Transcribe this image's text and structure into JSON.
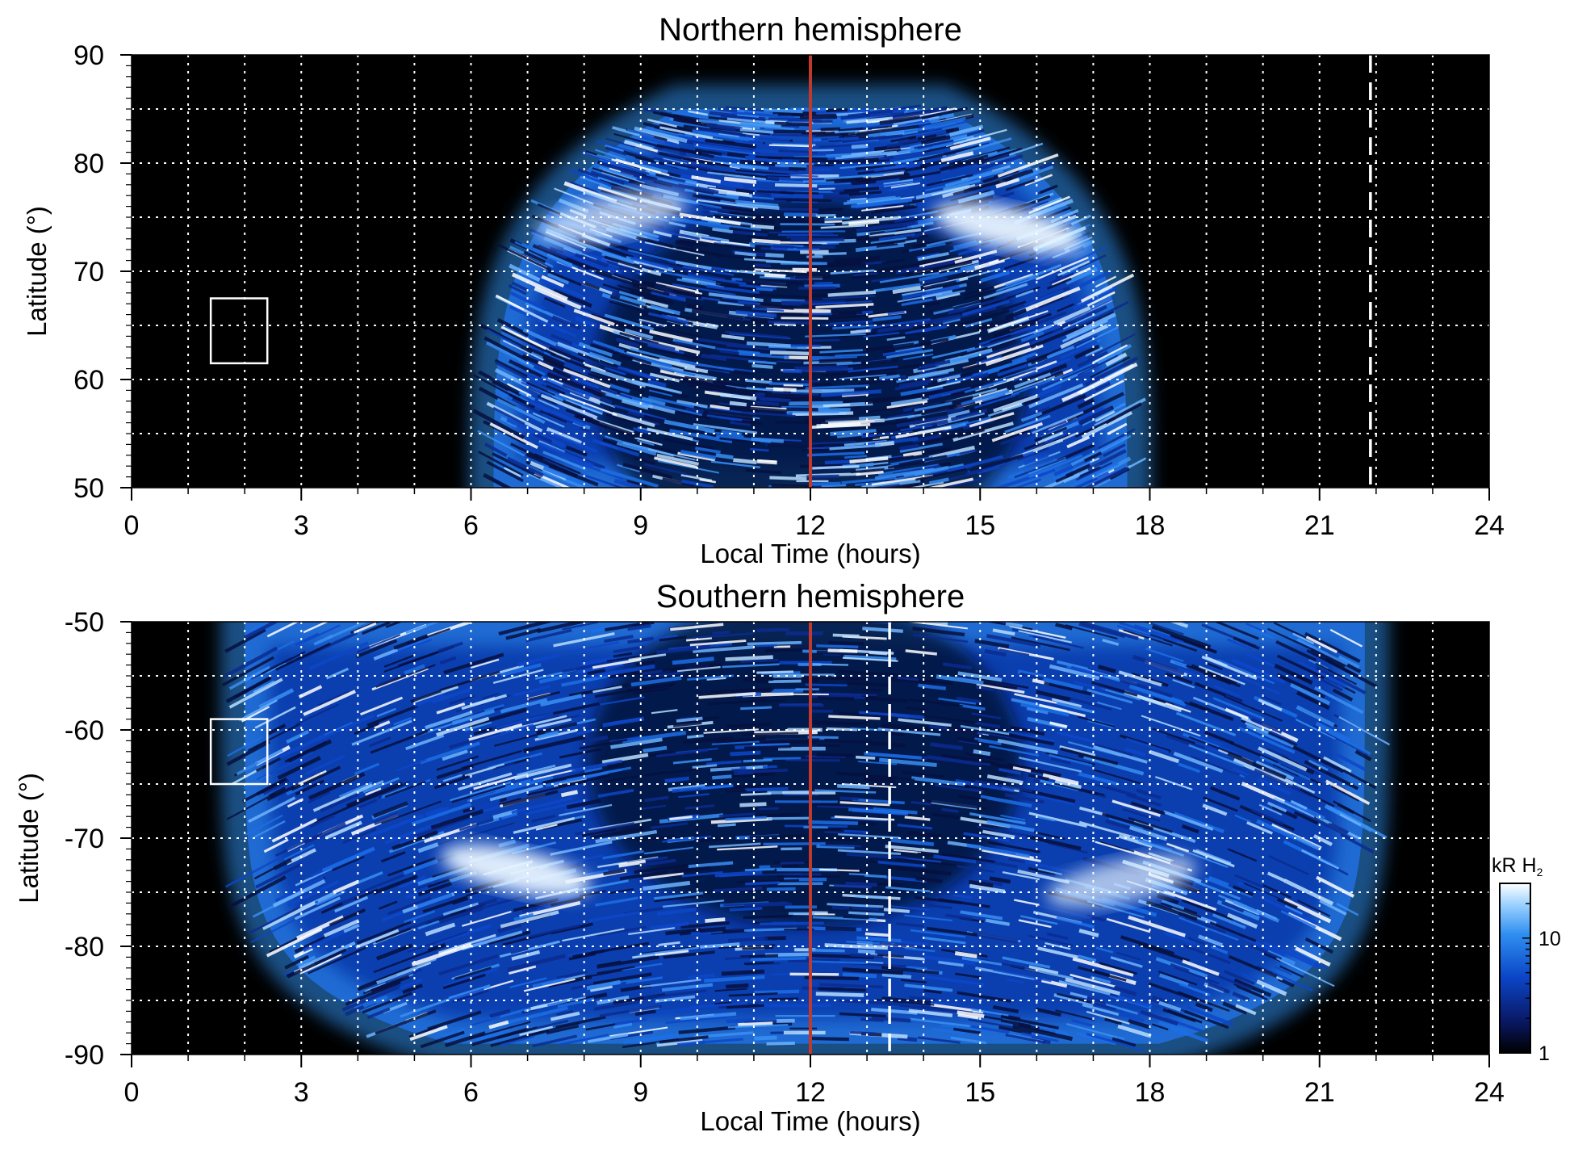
{
  "chart_data": [
    {
      "type": "heatmap",
      "title": "Northern hemisphere",
      "xlabel": "Local Time (hours)",
      "ylabel": "Latitude (°)",
      "xlim": [
        0,
        24
      ],
      "ylim": [
        50,
        90
      ],
      "x_ticks": [
        "0",
        "3",
        "6",
        "9",
        "12",
        "15",
        "18",
        "21",
        "24"
      ],
      "y_ticks": [
        "50",
        "60",
        "70",
        "80",
        "90"
      ],
      "grid": true,
      "emission_region": {
        "lt_start": 6.4,
        "lt_end": 17.6,
        "lat_min": 50,
        "lat_max": 85
      },
      "bright_arcs": [
        {
          "lt_center": 8.5,
          "lat": 75,
          "intensity": "moderate"
        },
        {
          "lt_center": 15.5,
          "lat": 74,
          "intensity": "high"
        }
      ],
      "noon_line_lt": 12,
      "dashed_line_lt": 21.9,
      "reference_box": {
        "lt": [
          1.4,
          2.4
        ],
        "lat": [
          61.5,
          67.5
        ]
      }
    },
    {
      "type": "heatmap",
      "title": "Southern hemisphere",
      "xlabel": "Local Time (hours)",
      "ylabel": "Latitude (°)",
      "xlim": [
        0,
        24
      ],
      "ylim": [
        -90,
        -50
      ],
      "x_ticks": [
        "0",
        "3",
        "6",
        "9",
        "12",
        "15",
        "18",
        "21",
        "24"
      ],
      "y_ticks": [
        "-50",
        "-60",
        "-70",
        "-80",
        "-90"
      ],
      "grid": true,
      "emission_region": {
        "lt_start": 2.0,
        "lt_end": 21.8,
        "lat_min": -89,
        "lat_max": -50
      },
      "bright_arcs": [
        {
          "lt_center": 6.8,
          "lat": -73,
          "intensity": "high"
        },
        {
          "lt_center": 17.5,
          "lat": -74,
          "intensity": "moderate"
        }
      ],
      "noon_line_lt": 12,
      "dashed_line_lt": 13.4,
      "reference_box": {
        "lt": [
          1.4,
          2.4
        ],
        "lat": [
          -65,
          -59
        ]
      }
    }
  ],
  "colorbar": {
    "label_main": "kR H",
    "label_sub": "2",
    "scale": "log",
    "ticks": [
      "1",
      "10"
    ],
    "range": [
      1,
      30
    ],
    "colors": [
      "#000000",
      "#0a1a6a",
      "#0b46c8",
      "#2f8ff0",
      "#9fd3ff",
      "#ffffff"
    ]
  },
  "colors": {
    "background": "#000000",
    "noon_line": "#c0392b",
    "grid": "#ffffff"
  }
}
